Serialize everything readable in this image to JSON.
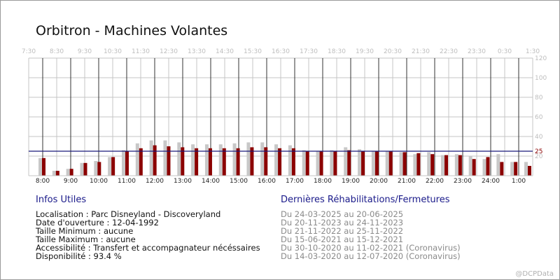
{
  "title": "Orbitron - Machines Volantes",
  "chart_data": {
    "type": "bar",
    "top_ticks": [
      "7:30",
      "8:30",
      "9:30",
      "10:30",
      "11:30",
      "12:30",
      "13:30",
      "14:30",
      "15:30",
      "16:30",
      "17:30",
      "18:30",
      "19:30",
      "20:30",
      "21:30",
      "22:30",
      "23:30",
      "0:30",
      "1:30"
    ],
    "bottom_ticks": [
      "8:00",
      "9:00",
      "10:00",
      "11:00",
      "12:00",
      "13:00",
      "14:00",
      "15:00",
      "16:00",
      "17:00",
      "18:00",
      "19:00",
      "20:00",
      "21:00",
      "22:00",
      "23:00",
      "24:00",
      "1:00"
    ],
    "y_ticks": [
      "120",
      "100",
      "80",
      "60",
      "40",
      "20"
    ],
    "ylim": [
      0,
      120
    ],
    "reference_line": {
      "value": 25,
      "label": "25",
      "color": "#1a1a7a"
    },
    "series": [
      {
        "color": "#8b0000",
        "values": [
          18,
          5,
          7,
          13,
          14,
          19,
          25,
          28,
          31,
          30,
          29,
          28,
          28,
          28,
          28,
          29,
          29,
          28,
          28,
          25,
          25,
          25,
          26,
          25,
          25,
          25,
          24,
          23,
          22,
          21,
          21,
          17,
          19,
          14,
          14,
          10
        ]
      },
      {
        "color": "#c8c8c8",
        "values": [
          18,
          5,
          7,
          13,
          15,
          19,
          26,
          33,
          36,
          36,
          34,
          32,
          32,
          32,
          33,
          34,
          34,
          32,
          31,
          26,
          25,
          26,
          29,
          27,
          25,
          25,
          24,
          22,
          24,
          21,
          22,
          20,
          17,
          22,
          14,
          14
        ]
      }
    ]
  },
  "info": {
    "heading": "Infos Utiles",
    "lines": [
      "Localisation : Parc Disneyland - Discoveryland",
      "Date d'ouverture : 12-04-1992",
      "Taille Minimum : aucune",
      "Taille Maximum : aucune",
      "Accessibilité : Transfert et accompagnateur nécéssaires",
      "Disponibilité : 93.4 %"
    ]
  },
  "rehab": {
    "heading": "Dernières Réhabilitations/Fermetures",
    "lines": [
      "Du 24-03-2025 au 20-06-2025",
      "Du 20-11-2023 au 24-11-2023",
      "Du 21-11-2022 au 25-11-2022",
      "Du 15-06-2021 au 15-12-2021",
      "Du 30-10-2020 au 11-02-2021 (Coronavirus)",
      "Du 14-03-2020 au 12-07-2020 (Coronavirus)"
    ]
  },
  "watermark": "@DCPData"
}
